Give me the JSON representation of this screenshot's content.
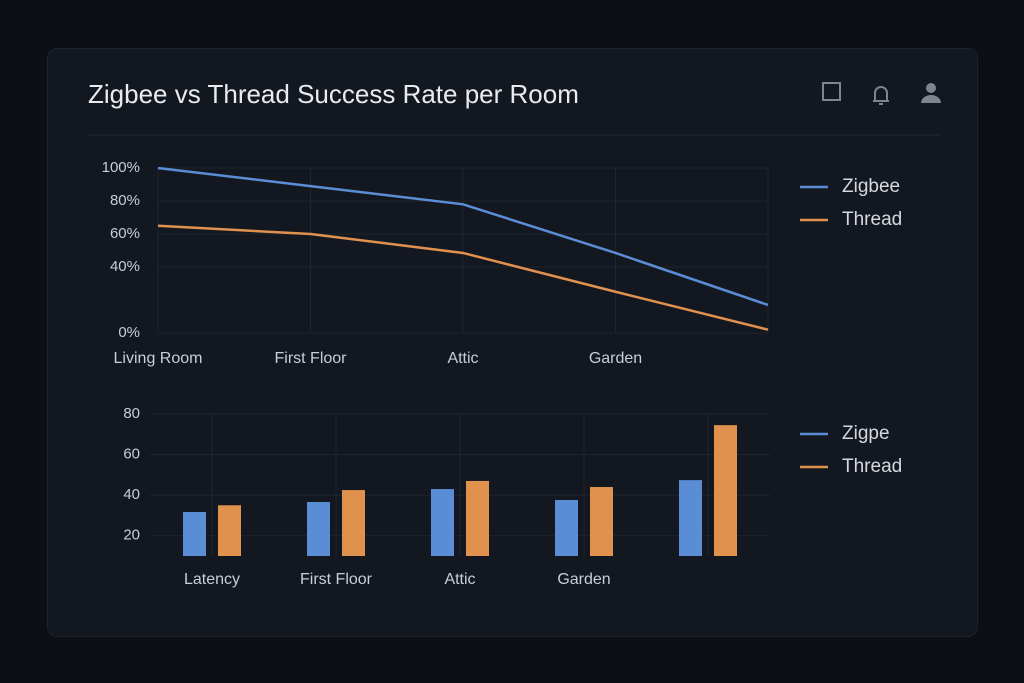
{
  "chart_data": [
    {
      "type": "line",
      "title": "Zigbee vs Thread Success Rate per Room",
      "categories": [
        "Living Room",
        "First Floor",
        "Attic",
        "Garden",
        null
      ],
      "series": [
        {
          "name": "Zigbee",
          "color": "#5b8dd6",
          "values": [
            100,
            89,
            78,
            48.5,
            17
          ]
        },
        {
          "name": "Thread",
          "color": "#e0914e",
          "values": [
            65,
            60,
            48.5,
            25,
            2
          ]
        }
      ],
      "ylim": [
        0,
        100
      ],
      "yticks": [
        {
          "value": 100,
          "label": "100%"
        },
        {
          "value": 80,
          "label": "80%"
        },
        {
          "value": 60,
          "label": "60%"
        },
        {
          "value": 40,
          "label": "40%"
        },
        {
          "value": 0,
          "label": "0%"
        }
      ],
      "grid": true
    },
    {
      "type": "bar",
      "categories": [
        "Latency",
        "First Floor",
        "Attic",
        "Garden",
        null
      ],
      "series": [
        {
          "name": "Zigpe",
          "color": "#5b8dd6",
          "values": [
            31.7,
            36.6,
            43,
            37.6,
            47.4
          ]
        },
        {
          "name": "Thread",
          "color": "#e0914e",
          "values": [
            35,
            42.5,
            47,
            44,
            74.5
          ]
        }
      ],
      "ylim": [
        10,
        80
      ],
      "yticks": [
        80,
        60,
        40,
        20
      ],
      "grid": true
    }
  ]
}
